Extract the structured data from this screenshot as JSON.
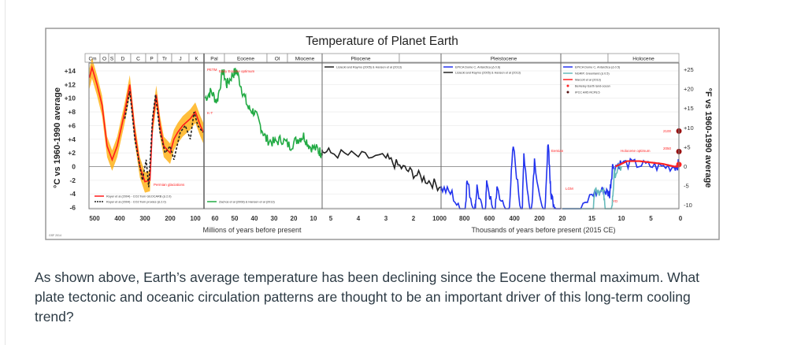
{
  "question": {
    "text": "As shown above, Earth’s average temperature has been declining since the Eocene thermal maximum.  What plate tectonic and oceanic circulation patterns are thought to be an important driver of this long-term cooling trend?"
  },
  "chart_data": {
    "type": "line",
    "title": "Temperature of Planet Earth",
    "ylabel_left": "°C vs 1960-1990 average",
    "ylabel_right": "°F vs 1960-1990 average",
    "xlabel_left": "Millions of years before present",
    "xlabel_right": "Thousands of years before present (2015 CE)",
    "credit": "GSF 2014",
    "ylim_c": [
      -6,
      14
    ],
    "yticks_left": [
      "+14",
      "+12",
      "+10",
      "+8",
      "+6",
      "+4",
      "+2",
      "0",
      "-2",
      "-4",
      "-6"
    ],
    "yticks_right": [
      "+25",
      "+20",
      "+15",
      "+10",
      "+5",
      "0",
      "-5",
      "-10"
    ],
    "grid": true,
    "periods": [
      "Cm",
      "O",
      "S",
      "D",
      "C",
      "P",
      "Tr",
      "J",
      "K",
      "Pal",
      "Eocene",
      "Ol",
      "Miocene",
      "Pliocene",
      "Pleistocene",
      "Holocene"
    ],
    "panels": [
      {
        "unit": "Myr",
        "xticks": [
          "500",
          "400",
          "300",
          "200",
          "100"
        ],
        "series": [
          {
            "name": "Royer et al (2004) - CO2 from GEOCARB (Δ 2.0)",
            "color": "#ff1a1a",
            "points": [
              [
                520,
                13
              ],
              [
                510,
                14.5
              ],
              [
                490,
                12
              ],
              [
                470,
                9
              ],
              [
                450,
                3
              ],
              [
                430,
                1
              ],
              [
                410,
                3
              ],
              [
                380,
                8
              ],
              [
                360,
                12
              ],
              [
                340,
                5
              ],
              [
                320,
                0
              ],
              [
                300,
                -2.2
              ],
              [
                280,
                -2
              ],
              [
                270,
                6
              ],
              [
                255,
                10.5
              ],
              [
                240,
                6
              ],
              [
                225,
                3
              ],
              [
                200,
                2
              ],
              [
                185,
                4
              ],
              [
                170,
                5
              ],
              [
                150,
                6
              ],
              [
                120,
                7
              ],
              [
                100,
                8
              ],
              [
                80,
                6
              ],
              [
                68,
                5
              ]
            ]
          },
          {
            "name": "Royer et al (2004) - CO2 from proxies (Δ 2.0)",
            "color": "#222222",
            "dashed": true,
            "points": [
              [
                380,
                7
              ],
              [
                360,
                11
              ],
              [
                340,
                4
              ],
              [
                310,
                -2
              ],
              [
                295,
                1
              ],
              [
                285,
                -3
              ],
              [
                270,
                7
              ],
              [
                258,
                10.5
              ],
              [
                240,
                5
              ],
              [
                220,
                2
              ],
              [
                200,
                3
              ],
              [
                185,
                1
              ],
              [
                160,
                5
              ],
              [
                140,
                6
              ],
              [
                120,
                4
              ],
              [
                105,
                8
              ],
              [
                90,
                6
              ],
              [
                70,
                5
              ]
            ]
          }
        ],
        "annotations": [
          "Permian glaciations"
        ]
      },
      {
        "unit": "Myr",
        "xticks": [
          "60",
          "50",
          "40",
          "30",
          "20",
          "10"
        ],
        "series": [
          {
            "name": "Zachos et al (2008) & Hansen et al (2013)",
            "color": "#22aa44",
            "points": [
              [
                65,
                10
              ],
              [
                62,
                11
              ],
              [
                59,
                9.5
              ],
              [
                56,
                14
              ],
              [
                54,
                12
              ],
              [
                51,
                13.5
              ],
              [
                49,
                14
              ],
              [
                46,
                11
              ],
              [
                43,
                8.5
              ],
              [
                40,
                8
              ],
              [
                37,
                6
              ],
              [
                34,
                4
              ],
              [
                30,
                3.5
              ],
              [
                26,
                4
              ],
              [
                22,
                3
              ],
              [
                18,
                4
              ],
              [
                15,
                4.5
              ],
              [
                12,
                3
              ],
              [
                8,
                2.5
              ],
              [
                6,
                2
              ]
            ]
          }
        ],
        "annotations": [
          "PETM",
          "Early Eocene optimum",
          "K-T"
        ]
      },
      {
        "unit": "Myr",
        "xticks": [
          "5",
          "4",
          "3",
          "2"
        ],
        "series": [
          {
            "name": "Lisiecki and Raymo (2005) & Hansen et al (2013)",
            "color": "#222222",
            "points": [
              [
                5.6,
                2.5
              ],
              [
                5,
                2
              ],
              [
                4,
                1.5
              ],
              [
                3,
                1.2
              ],
              [
                2.5,
                0
              ],
              [
                2,
                -1
              ],
              [
                1.5,
                -2
              ],
              [
                1,
                -3
              ]
            ]
          }
        ]
      },
      {
        "unit": "kyr",
        "xticks": [
          "1000",
          "800",
          "600",
          "400",
          "200"
        ],
        "series": [
          {
            "name": "EPICA Dome C, Antarctica (Δ 0.6)",
            "color": "#2233ee",
            "points": [
              [
                1000,
                -3
              ],
              [
                900,
                -4
              ],
              [
                800,
                -8
              ],
              [
                780,
                -2
              ],
              [
                720,
                -7
              ],
              [
                700,
                -3
              ],
              [
                640,
                -8
              ],
              [
                620,
                -2
              ],
              [
                560,
                -8
              ],
              [
                540,
                -3
              ],
              [
                450,
                -8
              ],
              [
                410,
                3
              ],
              [
                340,
                -8
              ],
              [
                325,
                2
              ],
              [
                270,
                -8
              ],
              [
                240,
                1
              ],
              [
                160,
                -9
              ],
              [
                130,
                4
              ],
              [
                110,
                -4
              ],
              [
                70,
                -6
              ],
              [
                30,
                -8
              ]
            ]
          }
        ],
        "annotations": [
          "Eemian"
        ]
      },
      {
        "unit": "kyr",
        "xticks": [
          "20",
          "15",
          "10",
          "5",
          "0"
        ],
        "series": [
          {
            "name": "EPICA Dome C, Antarctica (Δ 0.5)",
            "color": "#2233ee",
            "points": [
              [
                20,
                -9
              ],
              [
                18,
                -8
              ],
              [
                15,
                -4
              ],
              [
                13,
                -3.5
              ],
              [
                12,
                -4
              ],
              [
                11.5,
                0
              ],
              [
                10,
                0.5
              ],
              [
                7,
                0.3
              ],
              [
                4,
                0
              ],
              [
                1,
                0
              ],
              [
                0,
                0.5
              ]
            ]
          },
          {
            "name": "NGRIP, Greenland (Δ 0.5)",
            "color": "#66bbbb",
            "points": [
              [
                20,
                -10
              ],
              [
                17,
                -9.5
              ],
              [
                15,
                -9
              ],
              [
                14.5,
                -3
              ],
              [
                13,
                -4
              ],
              [
                12.5,
                -9
              ],
              [
                11.6,
                -6
              ],
              [
                11.2,
                -1
              ],
              [
                10,
                0
              ]
            ]
          },
          {
            "name": "Marcott et al (2013)",
            "color": "#ff2222",
            "points": [
              [
                11,
                0
              ],
              [
                9,
                0.8
              ],
              [
                7,
                0.8
              ],
              [
                5,
                0.6
              ],
              [
                3,
                0.4
              ],
              [
                1,
                0
              ],
              [
                0,
                0
              ]
            ]
          },
          {
            "name": "Berkeley Earth land-ocean",
            "color": "#ff2222",
            "marker": true
          },
          {
            "name": "IPCC AR5 RCP8.5",
            "color": "#551111",
            "marker": true
          }
        ],
        "annotations": [
          "LGM",
          "YD",
          "Holocene optimum",
          "2050",
          "2100"
        ]
      }
    ]
  }
}
